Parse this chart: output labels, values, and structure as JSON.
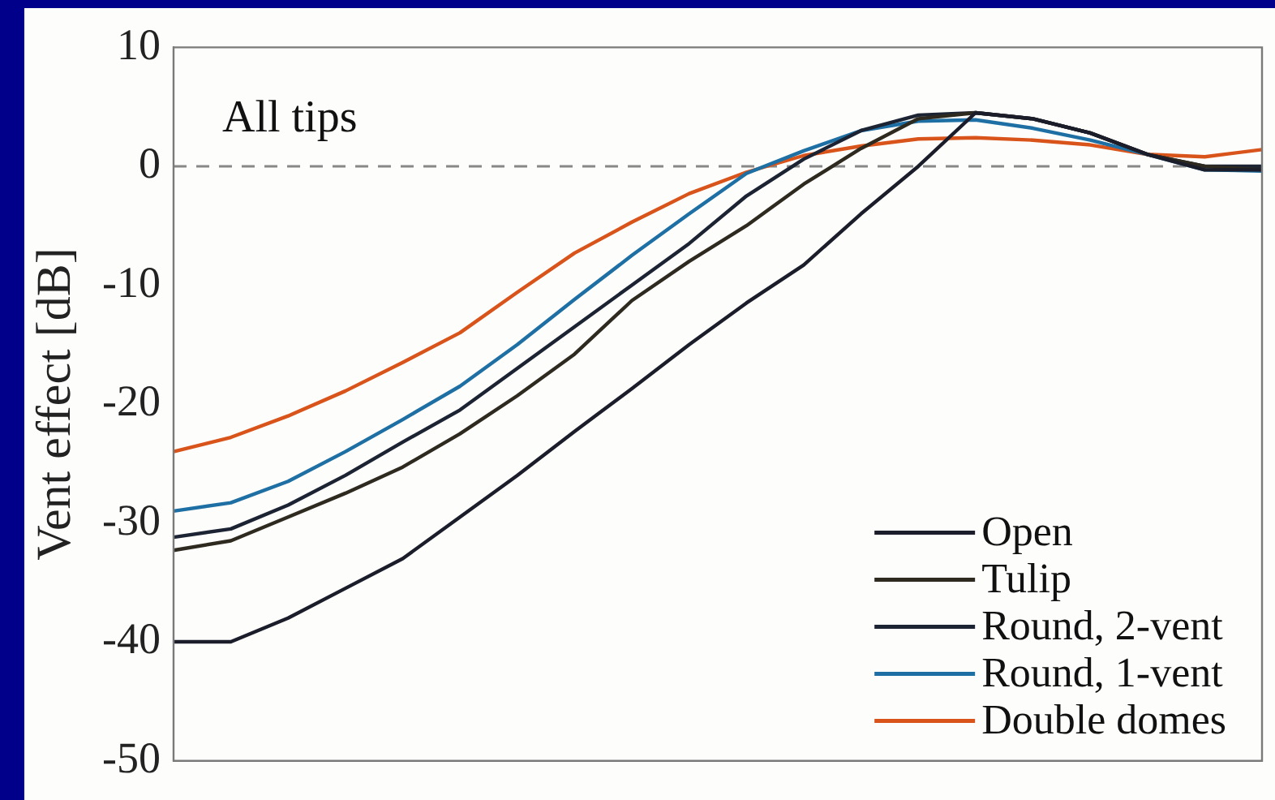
{
  "chart_data": {
    "type": "line",
    "ylabel": "Vent effect [dB]",
    "annotations": [
      "All tips"
    ],
    "categories": [
      null,
      null,
      null,
      null,
      null,
      null,
      null,
      null,
      null,
      null,
      null,
      null,
      null,
      null,
      null,
      null,
      null,
      null,
      null,
      null
    ],
    "series": [
      {
        "name": "Open",
        "color": "#1b1e2a",
        "values": [
          -40,
          -40,
          -38,
          -35.5,
          -33,
          -29.5,
          -26,
          -22.3,
          -18.7,
          -15,
          -11.5,
          -8.3,
          -4,
          0,
          4.5,
          4,
          2.8,
          1,
          -0.3,
          -0.3
        ]
      },
      {
        "name": "Tulip",
        "color": "#2e2a20",
        "values": [
          -32.3,
          -31.5,
          -29.5,
          -27.5,
          -25.3,
          -22.5,
          -19.3,
          -15.8,
          -11.3,
          -8,
          -5,
          -1.5,
          1.5,
          4,
          4.5,
          4,
          2.8,
          1,
          0,
          -0.3
        ]
      },
      {
        "name": "Round, 2-vent",
        "color": "#1c2333",
        "values": [
          -31.2,
          -30.5,
          -28.5,
          -26,
          -23.2,
          -20.5,
          -17,
          -13.5,
          -10,
          -6.5,
          -2.5,
          0.6,
          3,
          4.3,
          4.5,
          4,
          2.8,
          1,
          0,
          0
        ]
      },
      {
        "name": "Round, 1-vent",
        "color": "#1e6fa3",
        "values": [
          -29,
          -28.3,
          -26.5,
          -24,
          -21.3,
          -18.5,
          -15,
          -11.2,
          -7.5,
          -4,
          -0.6,
          1.3,
          3,
          3.8,
          3.9,
          3.2,
          2.2,
          1,
          -0.3,
          -0.4
        ]
      },
      {
        "name": "Double domes",
        "color": "#d9541a",
        "values": [
          -24,
          -22.8,
          -21,
          -18.9,
          -16.5,
          -14,
          -10.6,
          -7.3,
          -4.7,
          -2.3,
          -0.5,
          0.9,
          1.7,
          2.3,
          2.4,
          2.2,
          1.8,
          1,
          0.8,
          1.4
        ]
      }
    ],
    "ylim": [
      -50,
      10
    ],
    "yticks": [
      -50,
      -40,
      -30,
      -20,
      -10,
      0,
      10
    ],
    "ref_lines": [
      {
        "axis": "y",
        "value": 0,
        "color": "#888888",
        "line_style": "dashed"
      }
    ],
    "grid": false,
    "legend": "bottom right",
    "tick_labels": "y",
    "marker": "none",
    "line_style": "solid"
  }
}
